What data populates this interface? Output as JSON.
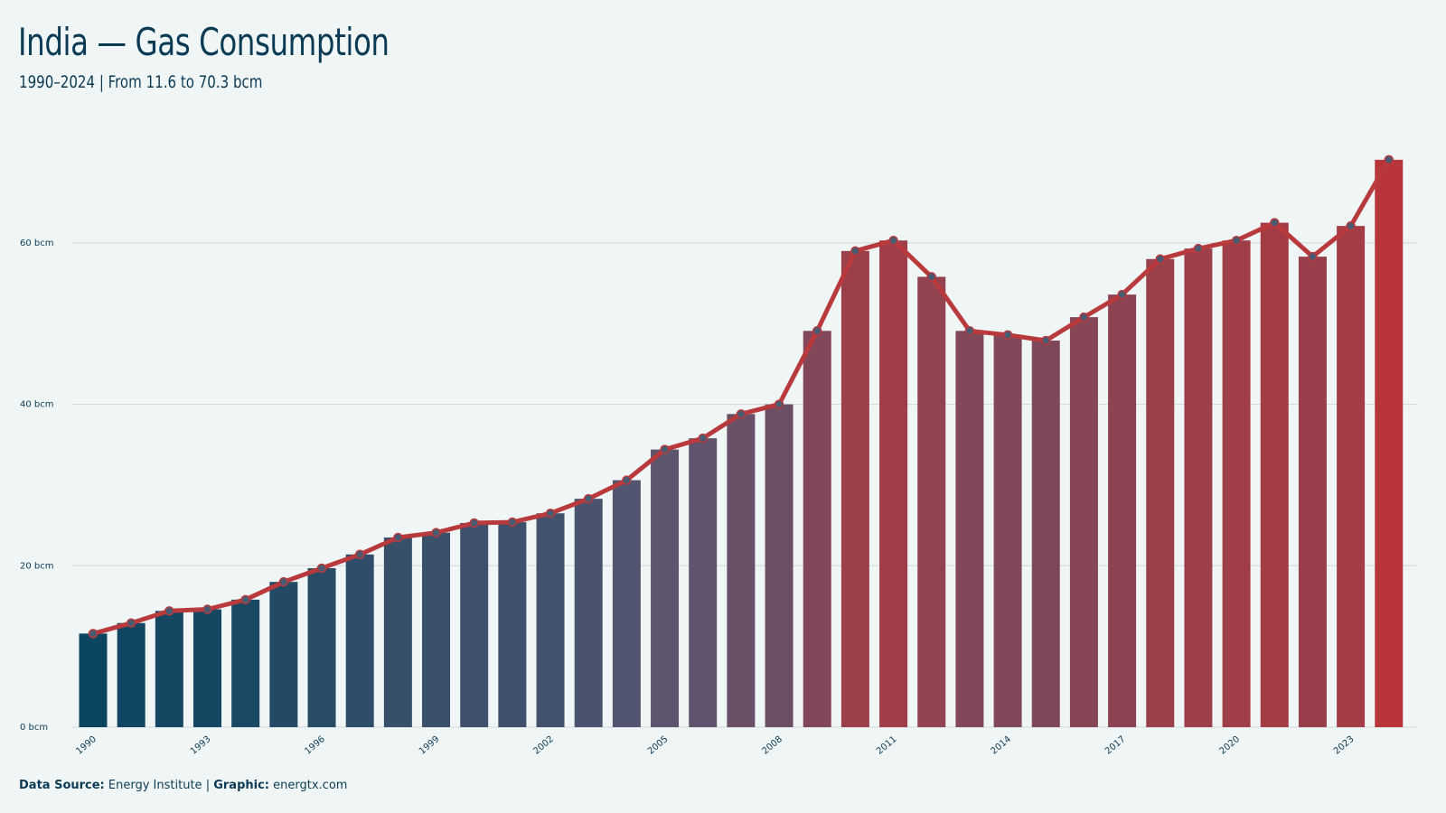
{
  "header": {
    "title": "India — Gas Consumption",
    "subtitle": "1990–2024 | From 11.6 to 70.3 bcm"
  },
  "footer": {
    "source_label": "Data Source:",
    "source_value": "Energy Institute",
    "separator": "|",
    "graphic_label": "Graphic:",
    "graphic_value": "energtx.com"
  },
  "colors": {
    "background": "#f0f6f6",
    "text": "#0b3a55",
    "grid": "#d0d8da",
    "line": "#b83a3c",
    "marker_fill": "#4a5a70",
    "bar_start": "#0b4560",
    "bar_mid": "#575670",
    "bar_end": "#b8353a"
  },
  "chart_data": {
    "type": "bar",
    "title": "India — Gas Consumption",
    "subtitle": "1990–2024 | From 11.6 to 70.3 bcm",
    "xlabel": "",
    "ylabel": "",
    "unit": "bcm",
    "ylim": [
      0,
      72
    ],
    "yticks": [
      0,
      20,
      40,
      60
    ],
    "ytick_labels": [
      "0 bcm",
      "20 bcm",
      "40 bcm",
      "60 bcm"
    ],
    "xtick_labels": [
      "1990",
      "1993",
      "1996",
      "1999",
      "2002",
      "2005",
      "2008",
      "2011",
      "2014",
      "2017",
      "2020",
      "2023"
    ],
    "grid": true,
    "legend": "none",
    "overlay": "line with markers on same values",
    "categories": [
      "1990",
      "1991",
      "1992",
      "1993",
      "1994",
      "1995",
      "1996",
      "1997",
      "1998",
      "1999",
      "2000",
      "2001",
      "2002",
      "2003",
      "2004",
      "2005",
      "2006",
      "2007",
      "2008",
      "2009",
      "2010",
      "2011",
      "2012",
      "2013",
      "2014",
      "2015",
      "2016",
      "2017",
      "2018",
      "2019",
      "2020",
      "2021",
      "2022",
      "2023",
      "2024"
    ],
    "values": [
      11.6,
      12.9,
      14.4,
      14.6,
      15.8,
      18.0,
      19.7,
      21.4,
      23.5,
      24.1,
      25.3,
      25.4,
      26.5,
      28.3,
      30.6,
      34.4,
      35.8,
      38.8,
      40.0,
      49.1,
      59.0,
      60.3,
      55.8,
      49.1,
      48.6,
      47.9,
      50.8,
      53.6,
      58.0,
      59.3,
      60.3,
      62.5,
      58.3,
      62.1,
      70.3
    ]
  }
}
